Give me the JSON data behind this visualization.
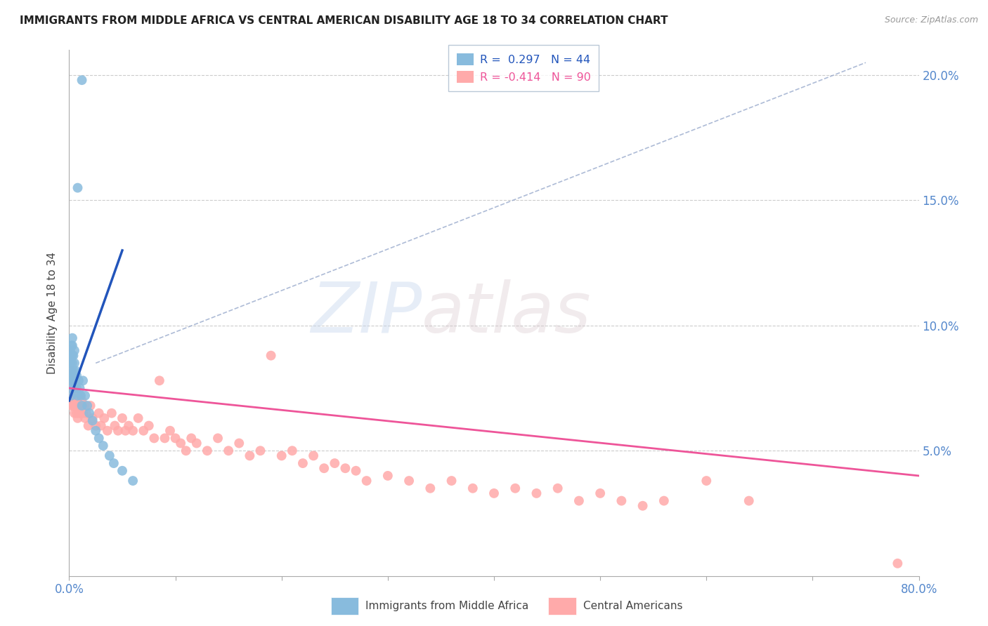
{
  "title": "IMMIGRANTS FROM MIDDLE AFRICA VS CENTRAL AMERICAN DISABILITY AGE 18 TO 34 CORRELATION CHART",
  "source": "Source: ZipAtlas.com",
  "ylabel": "Disability Age 18 to 34",
  "xlim": [
    0.0,
    0.8
  ],
  "ylim": [
    0.0,
    0.21
  ],
  "xticks": [
    0.0,
    0.1,
    0.2,
    0.3,
    0.4,
    0.5,
    0.6,
    0.7,
    0.8
  ],
  "yticks": [
    0.0,
    0.05,
    0.1,
    0.15,
    0.2
  ],
  "legend_blue_r": "R =  0.297",
  "legend_blue_n": "N = 44",
  "legend_pink_r": "R = -0.414",
  "legend_pink_n": "N = 90",
  "blue_color": "#88BBDD",
  "pink_color": "#FFAAAA",
  "blue_fill_color": "#6699CC",
  "pink_fill_color": "#FF8888",
  "blue_line_color": "#2255BB",
  "pink_line_color": "#EE5599",
  "dashed_line_color": "#99AACC",
  "watermark_color": "#D0DCF0",
  "blue_points_x": [
    0.001,
    0.001,
    0.001,
    0.001,
    0.002,
    0.002,
    0.002,
    0.002,
    0.002,
    0.003,
    0.003,
    0.003,
    0.003,
    0.003,
    0.004,
    0.004,
    0.004,
    0.005,
    0.005,
    0.005,
    0.005,
    0.006,
    0.006,
    0.007,
    0.007,
    0.008,
    0.009,
    0.01,
    0.011,
    0.012,
    0.013,
    0.015,
    0.017,
    0.019,
    0.022,
    0.025,
    0.028,
    0.032,
    0.038,
    0.042,
    0.05,
    0.06,
    0.012,
    0.008
  ],
  "blue_points_y": [
    0.075,
    0.08,
    0.085,
    0.09,
    0.078,
    0.082,
    0.088,
    0.092,
    0.072,
    0.08,
    0.085,
    0.088,
    0.092,
    0.095,
    0.078,
    0.082,
    0.088,
    0.075,
    0.08,
    0.085,
    0.09,
    0.078,
    0.082,
    0.075,
    0.08,
    0.072,
    0.078,
    0.075,
    0.072,
    0.068,
    0.078,
    0.072,
    0.068,
    0.065,
    0.062,
    0.058,
    0.055,
    0.052,
    0.048,
    0.045,
    0.042,
    0.038,
    0.198,
    0.155
  ],
  "pink_points_x": [
    0.001,
    0.001,
    0.001,
    0.002,
    0.002,
    0.002,
    0.003,
    0.003,
    0.003,
    0.004,
    0.004,
    0.004,
    0.005,
    0.005,
    0.005,
    0.006,
    0.006,
    0.007,
    0.007,
    0.008,
    0.008,
    0.009,
    0.01,
    0.01,
    0.011,
    0.012,
    0.013,
    0.014,
    0.015,
    0.016,
    0.018,
    0.02,
    0.022,
    0.025,
    0.028,
    0.03,
    0.033,
    0.036,
    0.04,
    0.043,
    0.046,
    0.05,
    0.053,
    0.056,
    0.06,
    0.065,
    0.07,
    0.075,
    0.08,
    0.085,
    0.09,
    0.095,
    0.1,
    0.105,
    0.11,
    0.115,
    0.12,
    0.13,
    0.14,
    0.15,
    0.16,
    0.17,
    0.18,
    0.19,
    0.2,
    0.21,
    0.22,
    0.23,
    0.24,
    0.25,
    0.26,
    0.27,
    0.28,
    0.3,
    0.32,
    0.34,
    0.36,
    0.38,
    0.4,
    0.42,
    0.44,
    0.46,
    0.48,
    0.5,
    0.52,
    0.54,
    0.56,
    0.6,
    0.64,
    0.78
  ],
  "pink_points_y": [
    0.075,
    0.08,
    0.072,
    0.078,
    0.082,
    0.068,
    0.075,
    0.08,
    0.07,
    0.078,
    0.072,
    0.068,
    0.075,
    0.07,
    0.065,
    0.072,
    0.068,
    0.07,
    0.065,
    0.068,
    0.063,
    0.065,
    0.068,
    0.072,
    0.065,
    0.07,
    0.065,
    0.068,
    0.063,
    0.065,
    0.06,
    0.068,
    0.063,
    0.06,
    0.065,
    0.06,
    0.063,
    0.058,
    0.065,
    0.06,
    0.058,
    0.063,
    0.058,
    0.06,
    0.058,
    0.063,
    0.058,
    0.06,
    0.055,
    0.078,
    0.055,
    0.058,
    0.055,
    0.053,
    0.05,
    0.055,
    0.053,
    0.05,
    0.055,
    0.05,
    0.053,
    0.048,
    0.05,
    0.088,
    0.048,
    0.05,
    0.045,
    0.048,
    0.043,
    0.045,
    0.043,
    0.042,
    0.038,
    0.04,
    0.038,
    0.035,
    0.038,
    0.035,
    0.033,
    0.035,
    0.033,
    0.035,
    0.03,
    0.033,
    0.03,
    0.028,
    0.03,
    0.038,
    0.03,
    0.005
  ],
  "blue_line_x0": 0.0,
  "blue_line_y0": 0.07,
  "blue_line_x1": 0.05,
  "blue_line_y1": 0.13,
  "pink_line_x0": 0.0,
  "pink_line_y0": 0.075,
  "pink_line_x1": 0.8,
  "pink_line_y1": 0.04,
  "dash_line_x0": 0.025,
  "dash_line_y0": 0.085,
  "dash_line_x1": 0.75,
  "dash_line_y1": 0.205
}
